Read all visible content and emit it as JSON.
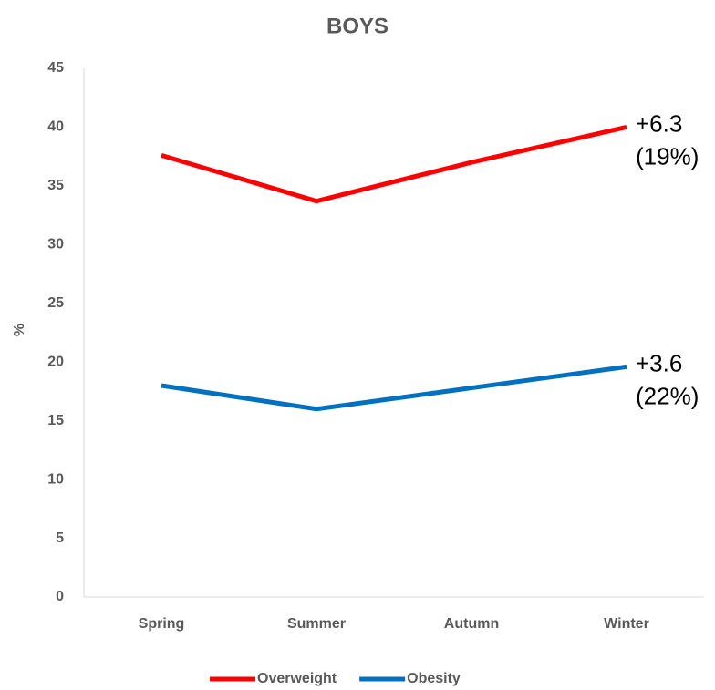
{
  "chart_data": {
    "type": "line",
    "title": "BOYS",
    "y_label": "%",
    "categories": [
      "Spring",
      "Summer",
      "Autumn",
      "Winter"
    ],
    "series": [
      {
        "name": "Overweight",
        "color": "#ff0000",
        "values": [
          37.6,
          33.7,
          37.0,
          40.0
        ]
      },
      {
        "name": "Obesity",
        "color": "#0070c0",
        "values": [
          18.0,
          16.0,
          17.8,
          19.6
        ]
      }
    ],
    "ylim": [
      0,
      45
    ],
    "yticks": [
      0,
      5,
      10,
      15,
      20,
      25,
      30,
      35,
      40,
      45
    ],
    "grid": false,
    "legend": "bottom",
    "annotations": [
      {
        "series": 0,
        "lines": [
          "+6.3",
          "(19%)"
        ]
      },
      {
        "series": 1,
        "lines": [
          "+3.6",
          "(22%)"
        ]
      }
    ]
  }
}
